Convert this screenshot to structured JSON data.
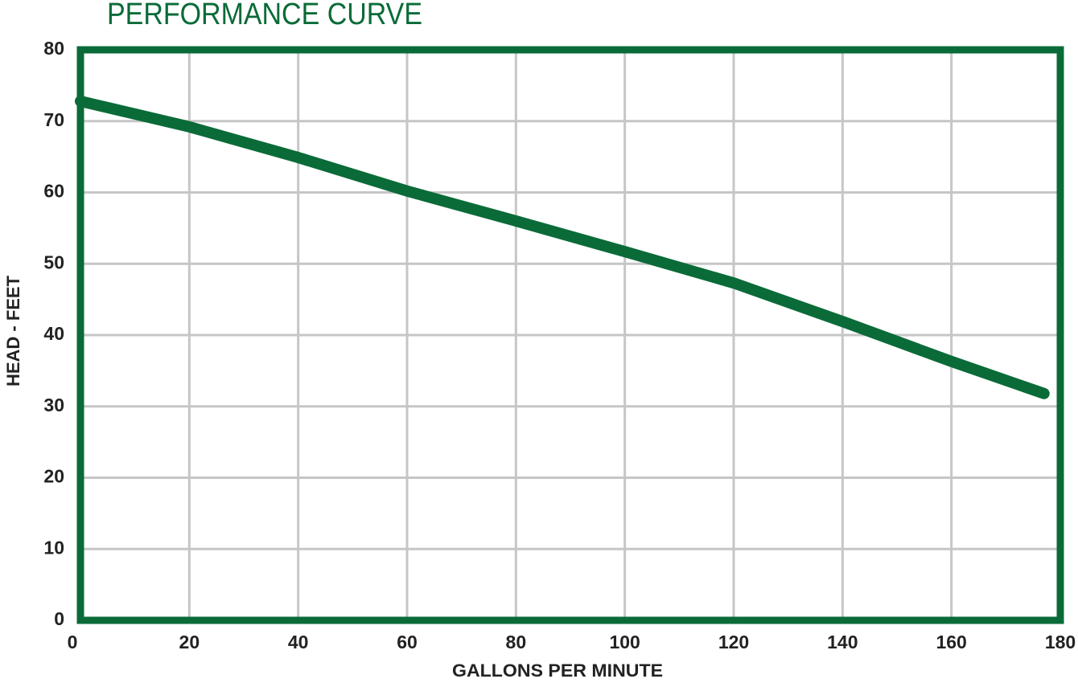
{
  "chart_data": {
    "type": "line",
    "title": "PERFORMANCE CURVE",
    "x_label": "GALLONS PER MINUTE",
    "y_label": "HEAD - FEET",
    "x": [
      0,
      20,
      40,
      60,
      80,
      100,
      120,
      140,
      160,
      177
    ],
    "values": [
      72.8,
      69.2,
      64.9,
      60.2,
      56,
      51.7,
      47.3,
      41.9,
      36.3,
      31.8
    ],
    "color": "#0a6b38",
    "xlim": [
      0,
      180
    ],
    "xticks": [
      0,
      20,
      40,
      60,
      80,
      100,
      120,
      140,
      160,
      180
    ],
    "ylim": [
      0,
      80
    ],
    "yticks": [
      0,
      10,
      20,
      30,
      40,
      50,
      60,
      70,
      80
    ],
    "grid": true
  }
}
